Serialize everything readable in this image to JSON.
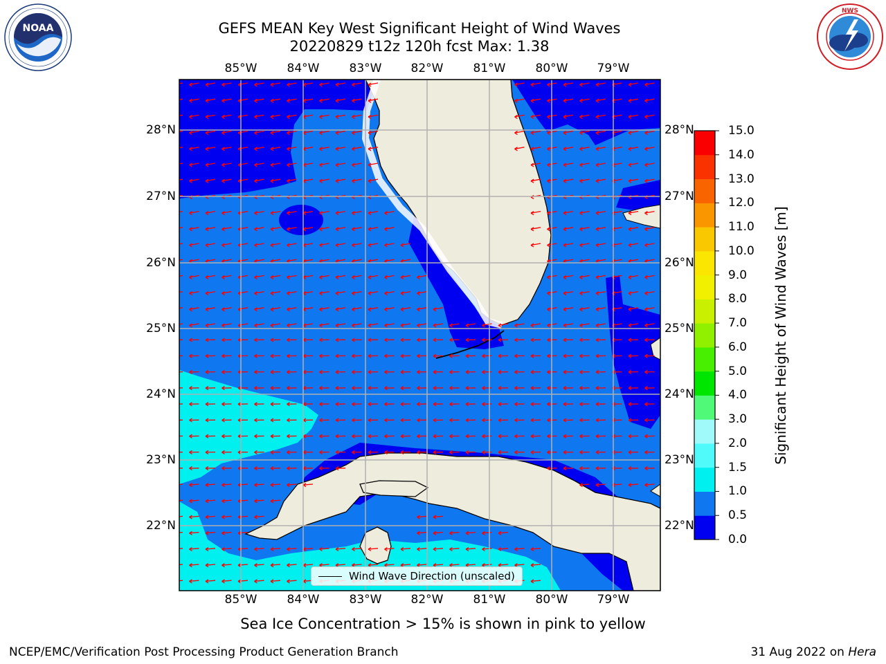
{
  "title": {
    "line1": "GEFS MEAN Key West Significant Height of Wind Waves",
    "line2": "20220829 t12z 120h fcst   Max: 1.38"
  },
  "logos": {
    "left": {
      "name": "NOAA",
      "ring_text": "NATIONAL OCEANIC AND ATMOSPHERIC ADMINISTRATION · U.S. DEPARTMENT OF COMMERCE"
    },
    "right": {
      "ring_text": "NATIONAL WEATHER SERVICE"
    }
  },
  "map": {
    "lon_ticks": [
      "85°W",
      "84°W",
      "83°W",
      "82°W",
      "81°W",
      "80°W",
      "79°W"
    ],
    "lat_ticks": [
      "28°N",
      "27°N",
      "26°N",
      "25°N",
      "24°N",
      "23°N",
      "22°N"
    ],
    "lon_range": [
      -86.0,
      -78.25
    ],
    "lat_range": [
      21.05,
      28.75
    ],
    "wave_direction": "westward (easterly trade winds)",
    "vector_color": "#ff0000",
    "land_color": "#eeecdd",
    "legend_label": "Wind Wave Direction (unscaled)"
  },
  "colorbar": {
    "title": "Significant Height of Wind Waves [m]",
    "levels": [
      "0.0",
      "0.5",
      "1.0",
      "1.5",
      "2.0",
      "3.0",
      "4.0",
      "5.0",
      "6.0",
      "7.0",
      "8.0",
      "9.0",
      "10.0",
      "11.0",
      "12.0",
      "13.0",
      "14.0",
      "15.0"
    ],
    "colors": [
      "#0000f0",
      "#0f78f0",
      "#00f0f0",
      "#50fafa",
      "#a0fafa",
      "#50fa78",
      "#00e600",
      "#48f000",
      "#90f000",
      "#c8f000",
      "#f0f000",
      "#fae600",
      "#fac800",
      "#fa9600",
      "#fa6400",
      "#fa3200",
      "#fa0000"
    ]
  },
  "ice_note": "Sea Ice Concentration > 15% is shown in pink to yellow",
  "footer": {
    "left": "NCEP/EMC/Verification Post Processing Product Generation Branch",
    "date": "31 Aug 2022 on",
    "machine": "Hera"
  }
}
